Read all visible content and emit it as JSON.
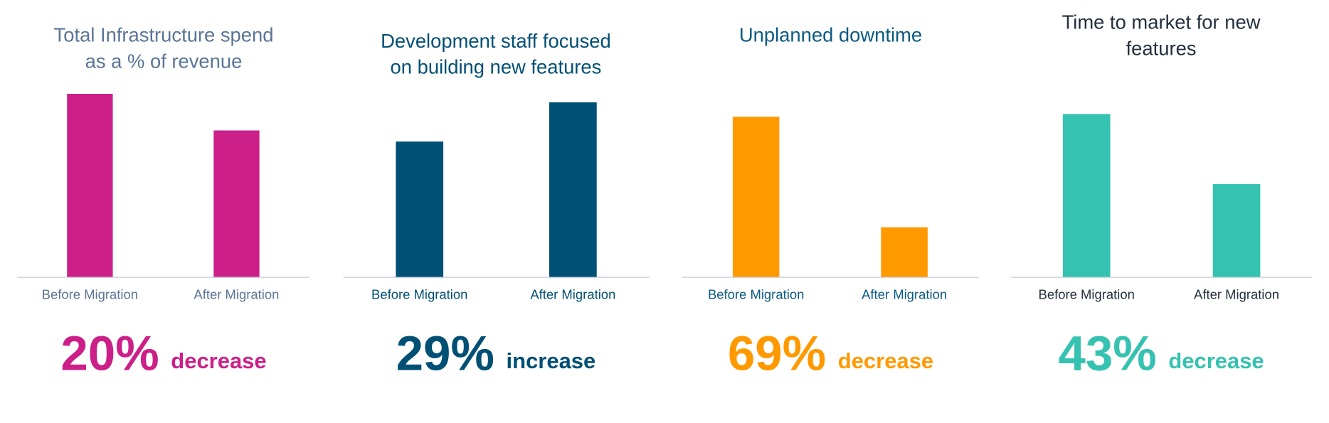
{
  "chart_data": [
    {
      "type": "bar",
      "title": [
        "Total Infrastructure spend",
        "as a % of revenue"
      ],
      "categories": [
        "Before Migration",
        "After Migration"
      ],
      "values": [
        100,
        80
      ],
      "ylim": [
        0,
        105
      ],
      "color": "#cc2088",
      "text_color": "#5a7596",
      "change": {
        "percent": "20%",
        "direction": "decrease"
      }
    },
    {
      "type": "bar",
      "title": [
        "Development staff focused",
        "on building new features"
      ],
      "categories": [
        "Before Migration",
        "After Migration"
      ],
      "values": [
        100,
        129
      ],
      "ylim": [
        0,
        142
      ],
      "color": "#004f74",
      "text_color": "#004f74",
      "change": {
        "percent": "29%",
        "direction": "increase"
      }
    },
    {
      "type": "bar",
      "title": [
        "Unplanned downtime"
      ],
      "categories": [
        "Before Migration",
        "After Migration"
      ],
      "values": [
        100,
        31
      ],
      "ylim": [
        0,
        120
      ],
      "color": "#ff9900",
      "text_color": "#0b5a82",
      "change": {
        "percent": "69%",
        "direction": "decrease"
      }
    },
    {
      "type": "bar",
      "title": [
        "Time to market for new",
        "features"
      ],
      "categories": [
        "Before Migration",
        "After Migration"
      ],
      "values": [
        100,
        57
      ],
      "ylim": [
        0,
        118
      ],
      "color": "#36c2b0",
      "text_color": "#232f3e",
      "change": {
        "percent": "43%",
        "direction": "decrease"
      }
    }
  ]
}
